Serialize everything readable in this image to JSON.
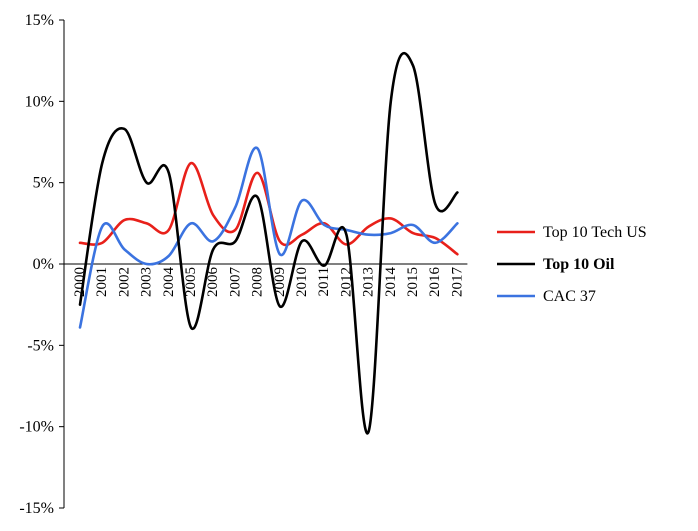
{
  "chart_data": {
    "type": "line",
    "title": "",
    "xlabel": "",
    "ylabel": "",
    "categories": [
      "2000",
      "2001",
      "2002",
      "2003",
      "2004",
      "2005",
      "2006",
      "2007",
      "2008",
      "2009",
      "2010",
      "2011",
      "2012",
      "2013",
      "2014",
      "2015",
      "2016",
      "2017"
    ],
    "y_ticks": [
      "15%",
      "10%",
      "5%",
      "0%",
      "-5%",
      "-10%",
      "-15%"
    ],
    "ylim": [
      -15,
      15
    ],
    "y_unit": "%",
    "grid": false,
    "legend_position": "right",
    "series": [
      {
        "name": "Top 10 Tech US",
        "color": "#e8201a",
        "values": [
          1.3,
          1.3,
          2.7,
          2.5,
          2.1,
          6.2,
          3.0,
          2.1,
          5.6,
          1.4,
          1.8,
          2.5,
          1.2,
          2.3,
          2.8,
          1.9,
          1.6,
          0.6
        ]
      },
      {
        "name": "Top 10 Oil",
        "color": "#000000",
        "values": [
          -2.5,
          6.2,
          8.3,
          5.0,
          5.6,
          -3.9,
          0.9,
          1.4,
          4.1,
          -2.6,
          1.4,
          -0.1,
          1.8,
          -10.3,
          10.0,
          12.2,
          3.7,
          4.4
        ]
      },
      {
        "name": "CAC 37",
        "color": "#3b73e0",
        "values": [
          -3.9,
          2.3,
          0.9,
          0.0,
          0.5,
          2.5,
          1.4,
          3.5,
          7.1,
          0.6,
          3.9,
          2.4,
          2.1,
          1.8,
          1.9,
          2.4,
          1.3,
          2.5
        ]
      }
    ]
  }
}
